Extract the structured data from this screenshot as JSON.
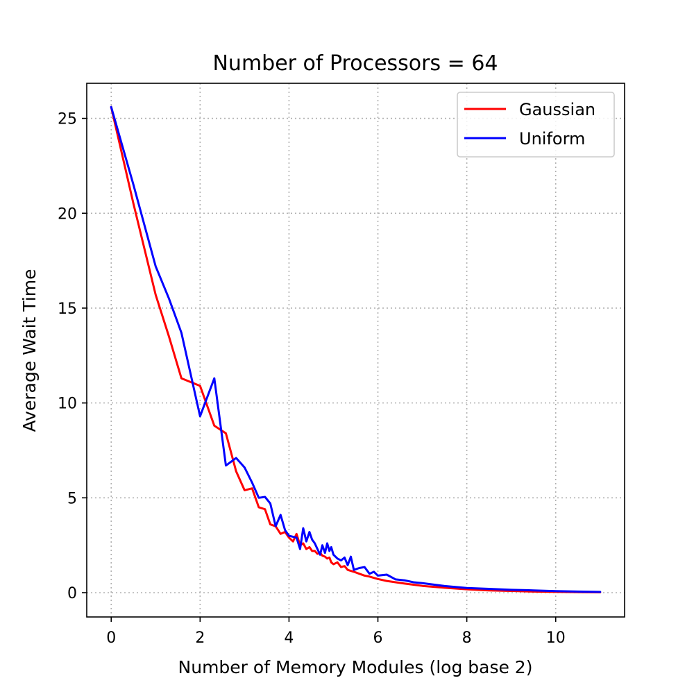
{
  "chart_data": {
    "type": "line",
    "title": "Number of Processors = 64",
    "xlabel": "Number of Memory Modules (log base 2)",
    "ylabel": "Average Wait Time",
    "xlim": [
      -0.55,
      11.55
    ],
    "ylim": [
      -1.28,
      26.85
    ],
    "xticks": [
      0,
      2,
      4,
      6,
      8,
      10
    ],
    "yticks": [
      0,
      5,
      10,
      15,
      20,
      25
    ],
    "grid": true,
    "legend_position": "top-right",
    "series": [
      {
        "name": "Gaussian",
        "color": "#ff0000",
        "x": [
          0,
          0.5,
          1.0,
          1.3,
          1.58,
          2.0,
          2.32,
          2.58,
          2.81,
          3.0,
          3.17,
          3.32,
          3.46,
          3.58,
          3.7,
          3.81,
          3.91,
          4.0,
          4.09,
          4.17,
          4.25,
          4.32,
          4.39,
          4.46,
          4.52,
          4.58,
          4.64,
          4.7,
          4.75,
          4.81,
          4.86,
          4.91,
          4.95,
          5.0,
          5.09,
          5.17,
          5.25,
          5.32,
          5.39,
          5.46,
          5.58,
          5.7,
          5.81,
          5.91,
          6.0,
          6.2,
          6.4,
          6.6,
          6.8,
          7.0,
          7.5,
          8.0,
          8.5,
          9.0,
          9.5,
          10.0,
          10.5,
          11.0
        ],
        "y": [
          25.6,
          20.5,
          15.7,
          13.5,
          11.3,
          10.9,
          8.8,
          8.4,
          6.4,
          5.4,
          5.5,
          4.5,
          4.4,
          3.6,
          3.5,
          3.1,
          3.2,
          2.9,
          2.7,
          3.1,
          2.5,
          2.6,
          2.3,
          2.4,
          2.2,
          2.2,
          2.05,
          2.1,
          1.95,
          1.9,
          1.8,
          1.85,
          1.6,
          1.5,
          1.6,
          1.35,
          1.4,
          1.2,
          1.15,
          1.1,
          1.0,
          0.9,
          0.85,
          0.78,
          0.72,
          0.62,
          0.55,
          0.48,
          0.42,
          0.36,
          0.26,
          0.18,
          0.12,
          0.09,
          0.06,
          0.04,
          0.03,
          0.02
        ]
      },
      {
        "name": "Uniform",
        "color": "#0000ff",
        "x": [
          0,
          0.5,
          1.0,
          1.3,
          1.58,
          2.0,
          2.32,
          2.58,
          2.81,
          3.0,
          3.17,
          3.32,
          3.46,
          3.58,
          3.7,
          3.81,
          3.91,
          4.0,
          4.09,
          4.17,
          4.25,
          4.32,
          4.39,
          4.46,
          4.52,
          4.58,
          4.64,
          4.7,
          4.75,
          4.81,
          4.86,
          4.91,
          4.95,
          5.0,
          5.09,
          5.17,
          5.25,
          5.32,
          5.39,
          5.46,
          5.58,
          5.7,
          5.81,
          5.91,
          6.0,
          6.2,
          6.4,
          6.6,
          6.8,
          7.0,
          7.5,
          8.0,
          8.5,
          9.0,
          9.5,
          10.0,
          10.5,
          11.0
        ],
        "y": [
          25.6,
          21.5,
          17.2,
          15.5,
          13.7,
          9.3,
          11.3,
          6.7,
          7.1,
          6.6,
          5.8,
          5.0,
          5.05,
          4.7,
          3.5,
          4.1,
          3.3,
          3.0,
          2.95,
          2.9,
          2.3,
          3.4,
          2.7,
          3.2,
          2.8,
          2.6,
          2.3,
          2.0,
          2.5,
          2.1,
          2.6,
          2.2,
          2.4,
          2.0,
          1.8,
          1.7,
          1.85,
          1.45,
          1.9,
          1.2,
          1.3,
          1.35,
          1.0,
          1.1,
          0.9,
          0.95,
          0.7,
          0.65,
          0.55,
          0.5,
          0.35,
          0.25,
          0.2,
          0.15,
          0.12,
          0.08,
          0.06,
          0.04
        ]
      }
    ]
  }
}
